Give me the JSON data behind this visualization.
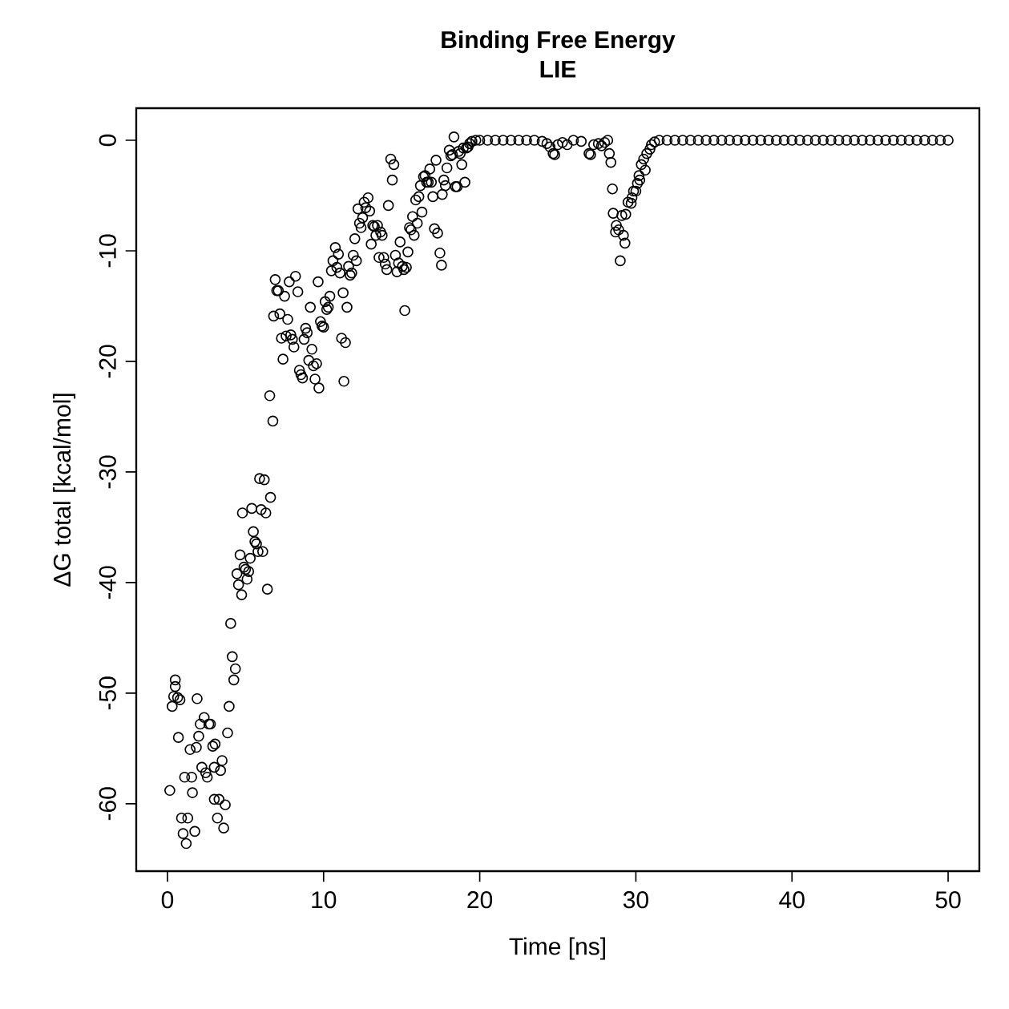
{
  "chart_data": {
    "type": "scatter",
    "title": "Binding Free Energy",
    "subtitle": "LIE",
    "xlabel": "Time [ns]",
    "ylabel": "ΔG total [kcal/mol]",
    "xlim": [
      -2,
      52
    ],
    "ylim": [
      -66.1,
      2.9
    ],
    "xticks": [
      0,
      10,
      20,
      30,
      40,
      50
    ],
    "yticks": [
      -60,
      -50,
      -40,
      -30,
      -20,
      -10,
      0
    ],
    "grid": false,
    "marker": "circle",
    "series": [
      {
        "color": "#000000",
        "x": [
          0.15,
          0.3,
          0.4,
          0.5,
          0.5,
          0.65,
          0.8,
          0.7,
          0.9,
          1.0,
          1.1,
          1.2,
          1.3,
          1.45,
          1.55,
          1.6,
          1.75,
          1.9,
          1.85,
          2.0,
          2.1,
          2.2,
          2.35,
          2.45,
          2.55,
          2.65,
          2.75,
          2.9,
          3.0,
          3.0,
          3.05,
          3.2,
          3.3,
          3.4,
          3.5,
          3.6,
          3.7,
          3.85,
          3.95,
          4.05,
          4.15,
          4.25,
          4.35,
          4.45,
          4.55,
          4.65,
          4.75,
          4.8,
          4.9,
          5.0,
          5.1,
          5.2,
          5.3,
          5.4,
          5.5,
          5.6,
          5.7,
          5.8,
          5.9,
          6.0,
          6.1,
          6.2,
          6.3,
          6.4,
          6.55,
          6.6,
          6.75,
          6.8,
          6.9,
          7.0,
          7.1,
          7.2,
          7.3,
          7.4,
          7.5,
          7.6,
          7.7,
          7.8,
          7.9,
          8.0,
          8.1,
          8.2,
          8.35,
          8.45,
          8.55,
          8.65,
          8.75,
          8.85,
          8.95,
          9.05,
          9.15,
          9.25,
          9.35,
          9.45,
          9.55,
          9.65,
          9.7,
          9.8,
          9.9,
          10.0,
          10.1,
          10.2,
          10.3,
          10.4,
          10.5,
          10.6,
          10.75,
          10.85,
          10.95,
          11.05,
          11.15,
          11.25,
          11.3,
          11.4,
          11.5,
          11.6,
          11.7,
          11.8,
          11.9,
          12.0,
          12.1,
          12.2,
          12.3,
          12.4,
          12.5,
          12.6,
          12.7,
          12.85,
          12.95,
          13.05,
          13.15,
          13.25,
          13.35,
          13.45,
          13.55,
          13.65,
          13.75,
          13.85,
          13.95,
          14.05,
          14.15,
          14.3,
          14.4,
          14.5,
          14.6,
          14.7,
          14.8,
          14.9,
          15.05,
          15.15,
          15.2,
          15.3,
          15.4,
          15.5,
          15.6,
          15.7,
          15.8,
          15.9,
          16.0,
          16.1,
          16.2,
          16.3,
          16.4,
          16.5,
          16.6,
          16.7,
          16.8,
          16.9,
          17.0,
          17.1,
          17.2,
          17.3,
          17.45,
          17.55,
          17.6,
          17.7,
          17.8,
          17.9,
          18.05,
          18.15,
          18.25,
          18.35,
          18.45,
          18.55,
          18.65,
          18.75,
          18.85,
          18.95,
          19.05,
          19.15,
          19.25,
          19.35,
          19.5,
          19.75,
          20.0,
          20.5,
          21.0,
          21.5,
          22.0,
          22.5,
          23.0,
          23.5,
          24.0,
          24.3,
          24.5,
          24.7,
          24.8,
          25.0,
          25.3,
          25.6,
          26.0,
          26.5,
          27.0,
          27.1,
          27.3,
          27.6,
          27.8,
          28.0,
          28.2,
          28.3,
          28.4,
          28.5,
          28.55,
          28.75,
          28.7,
          28.9,
          29.0,
          29.2,
          29.3,
          29.1,
          29.35,
          29.5,
          29.7,
          29.75,
          29.85,
          30.0,
          30.1,
          30.25,
          30.2,
          30.35,
          30.6,
          30.5,
          30.7,
          30.9,
          31.0,
          31.2,
          31.5,
          32.0,
          32.5,
          33.0,
          33.5,
          34.0,
          34.5,
          35.0,
          35.5,
          36.0,
          36.5,
          37.0,
          37.5,
          38.0,
          38.5,
          39.0,
          39.5,
          40.0,
          40.5,
          41.0,
          41.5,
          42.0,
          42.5,
          43.0,
          43.5,
          44.0,
          44.5,
          45.0,
          45.5,
          46.0,
          46.5,
          47.0,
          47.5,
          48.0,
          48.5,
          49.0,
          49.5,
          50.0
        ],
        "values": [
          -58.8,
          -51.2,
          -50.3,
          -48.8,
          -49.4,
          -50.4,
          -50.6,
          -54.0,
          -61.3,
          -62.7,
          -57.6,
          -63.6,
          -61.3,
          -55.1,
          -57.6,
          -59.0,
          -62.5,
          -50.5,
          -54.9,
          -53.9,
          -52.8,
          -56.7,
          -52.2,
          -57.2,
          -57.6,
          -52.8,
          -52.8,
          -54.8,
          -56.7,
          -59.6,
          -54.6,
          -61.3,
          -59.6,
          -57.0,
          -56.1,
          -62.2,
          -60.1,
          -53.6,
          -51.2,
          -43.7,
          -46.7,
          -48.8,
          -47.8,
          -39.2,
          -40.2,
          -37.5,
          -41.1,
          -33.7,
          -38.6,
          -38.8,
          -39.7,
          -39.0,
          -37.8,
          -33.3,
          -35.4,
          -36.3,
          -36.5,
          -37.2,
          -30.6,
          -33.4,
          -37.2,
          -30.7,
          -33.7,
          -40.6,
          -23.1,
          -32.3,
          -25.4,
          -15.9,
          -12.6,
          -13.6,
          -13.6,
          -15.7,
          -17.9,
          -19.8,
          -14.1,
          -17.7,
          -16.2,
          -12.8,
          -17.6,
          -18.0,
          -18.7,
          -12.3,
          -13.7,
          -20.8,
          -21.2,
          -21.5,
          -18.0,
          -17.0,
          -17.4,
          -19.9,
          -15.1,
          -18.9,
          -20.4,
          -21.6,
          -20.2,
          -12.8,
          -22.4,
          -16.4,
          -16.8,
          -16.9,
          -14.6,
          -15.3,
          -15.1,
          -14.1,
          -11.8,
          -10.9,
          -9.7,
          -11.5,
          -10.3,
          -12.0,
          -17.9,
          -13.8,
          -21.8,
          -18.3,
          -15.1,
          -11.4,
          -12.2,
          -12.0,
          -10.4,
          -8.9,
          -10.9,
          -6.2,
          -7.5,
          -7.9,
          -7.0,
          -5.6,
          -6.1,
          -5.2,
          -6.4,
          -9.4,
          -7.7,
          -7.8,
          -8.6,
          -7.7,
          -10.6,
          -8.3,
          -8.6,
          -10.6,
          -11.2,
          -11.7,
          -5.9,
          -1.7,
          -3.6,
          -2.2,
          -10.4,
          -11.9,
          -11.1,
          -9.2,
          -11.4,
          -11.7,
          -15.4,
          -11.5,
          -10.1,
          -7.9,
          -8.1,
          -6.9,
          -8.6,
          -5.4,
          -7.5,
          -5.1,
          -4.1,
          -6.5,
          -3.3,
          -3.2,
          -3.8,
          -3.8,
          -2.6,
          -3.8,
          -5.1,
          -8.0,
          -1.8,
          -8.4,
          -10.2,
          -11.3,
          -4.9,
          -3.6,
          -4.1,
          -2.5,
          -0.9,
          -1.4,
          -1.3,
          0.3,
          -4.2,
          -4.2,
          -1.0,
          -1.2,
          -2.2,
          -0.7,
          -3.8,
          -0.7,
          -0.6,
          -0.3,
          -0.1,
          0,
          0,
          0,
          0,
          0,
          0,
          0,
          0,
          0,
          -0.1,
          -0.3,
          -0.6,
          -1.2,
          -1.3,
          -0.4,
          -0.2,
          -0.4,
          0,
          -0.1,
          -1.2,
          -1.3,
          -0.4,
          -0.3,
          -0.5,
          -0.2,
          0,
          -1.2,
          -2.0,
          -4.4,
          -6.6,
          -7.7,
          -8.3,
          -8.1,
          -10.9,
          -8.6,
          -9.3,
          -6.8,
          -6.7,
          -5.6,
          -5.7,
          -5.2,
          -4.6,
          -4.6,
          -3.9,
          -3.6,
          -3.2,
          -2.2,
          -2.7,
          -1.7,
          -1.2,
          -0.8,
          -0.4,
          -0.15,
          0,
          0,
          0,
          0,
          0,
          0,
          0,
          0,
          0,
          0,
          0,
          0,
          0,
          0,
          0,
          0,
          0,
          0,
          0,
          0,
          0,
          0,
          0,
          0,
          0,
          0,
          0,
          0,
          0,
          0,
          0,
          0,
          0,
          0,
          0,
          0,
          0,
          0
        ]
      }
    ]
  }
}
